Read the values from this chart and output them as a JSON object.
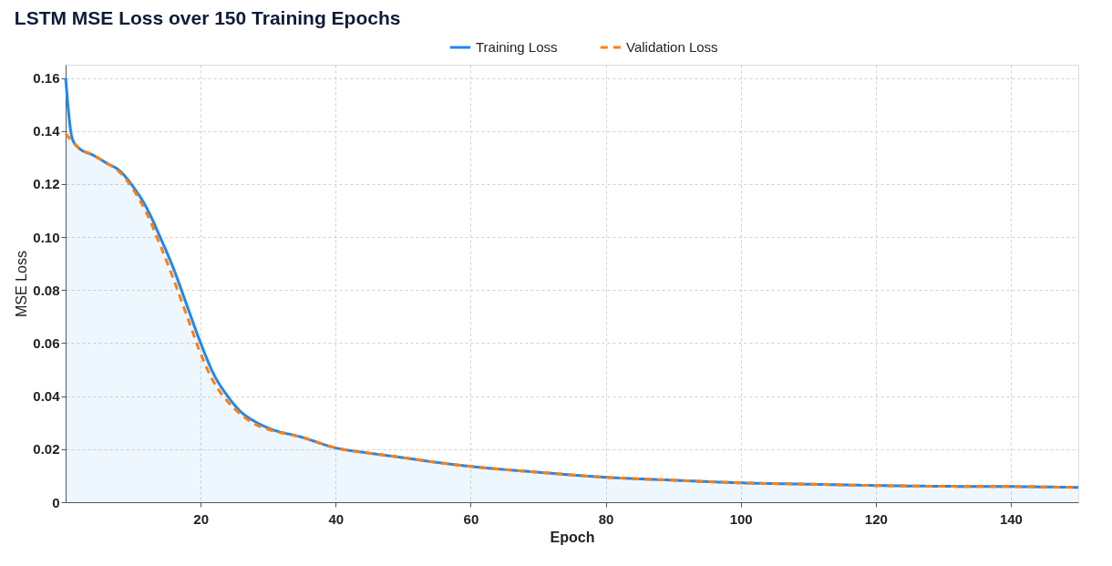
{
  "chart_data": {
    "type": "line",
    "title": "LSTM MSE Loss over 150 Training Epochs",
    "xlabel": "Epoch",
    "ylabel": "MSE Loss",
    "xlim": [
      0,
      150
    ],
    "ylim": [
      0,
      0.165
    ],
    "xticks": [
      20,
      40,
      60,
      80,
      100,
      120,
      140
    ],
    "yticks": [
      0,
      0.02,
      0.04,
      0.06,
      0.08,
      {
        "value": 0.1,
        "label": "0.10"
      },
      0.12,
      0.14,
      0.16
    ],
    "grid": true,
    "legend": "top",
    "marker": "none",
    "series": [
      {
        "name": "Training Loss",
        "type": "area",
        "color": "#1f87f0",
        "line_style": "solid",
        "x": [
          0,
          1,
          2,
          4,
          6,
          8,
          10,
          12,
          14,
          16,
          18,
          20,
          22,
          24,
          26,
          28,
          30,
          35,
          40,
          45,
          50,
          55,
          60,
          70,
          80,
          90,
          100,
          110,
          120,
          130,
          140,
          150
        ],
        "values": [
          0.16,
          0.137,
          0.1335,
          0.131,
          0.128,
          0.125,
          0.119,
          0.111,
          0.1,
          0.088,
          0.074,
          0.06,
          0.048,
          0.04,
          0.034,
          0.0305,
          0.028,
          0.0245,
          0.0205,
          0.0185,
          0.0168,
          0.015,
          0.0135,
          0.0113,
          0.0094,
          0.0083,
          0.0073,
          0.0068,
          0.0063,
          0.006,
          0.0059,
          0.0056
        ]
      },
      {
        "name": "Validation Loss",
        "type": "line",
        "color": "#ff7f0e",
        "line_style": "dashed",
        "x": [
          0,
          1,
          2,
          4,
          6,
          8,
          10,
          12,
          14,
          16,
          18,
          20,
          22,
          24,
          26,
          28,
          30,
          35,
          40,
          45,
          50,
          55,
          60,
          70,
          80,
          90,
          100,
          110,
          120,
          130,
          140,
          150
        ],
        "values": [
          0.139,
          0.136,
          0.1335,
          0.131,
          0.128,
          0.1245,
          0.118,
          0.109,
          0.097,
          0.084,
          0.07,
          0.056,
          0.045,
          0.038,
          0.033,
          0.0295,
          0.0275,
          0.0245,
          0.0205,
          0.0185,
          0.0168,
          0.015,
          0.0135,
          0.0113,
          0.0094,
          0.0083,
          0.0073,
          0.0068,
          0.0063,
          0.006,
          0.0059,
          0.0056
        ]
      }
    ]
  }
}
